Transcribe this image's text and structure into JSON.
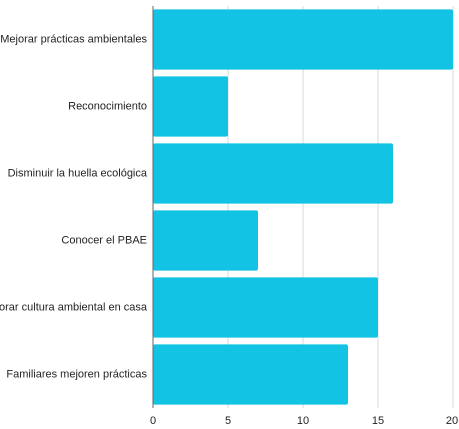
{
  "chart_data": {
    "type": "bar",
    "orientation": "horizontal",
    "categories": [
      "Mejorar prácticas ambientales",
      "Reconocimiento",
      "Disminuir la huella ecológica",
      "Conocer el PBAE",
      "Mejorar cultura ambiental en casa",
      "Familiares mejoren prácticas"
    ],
    "values": [
      20,
      5,
      16,
      7,
      15,
      13
    ],
    "xlim": [
      0,
      20
    ],
    "x_ticks": [
      0,
      5,
      10,
      15,
      20
    ],
    "grid": "vertical",
    "bar_color": "#12c3e3",
    "grid_color": "#d9d9d9",
    "axis_color": "#666666"
  }
}
